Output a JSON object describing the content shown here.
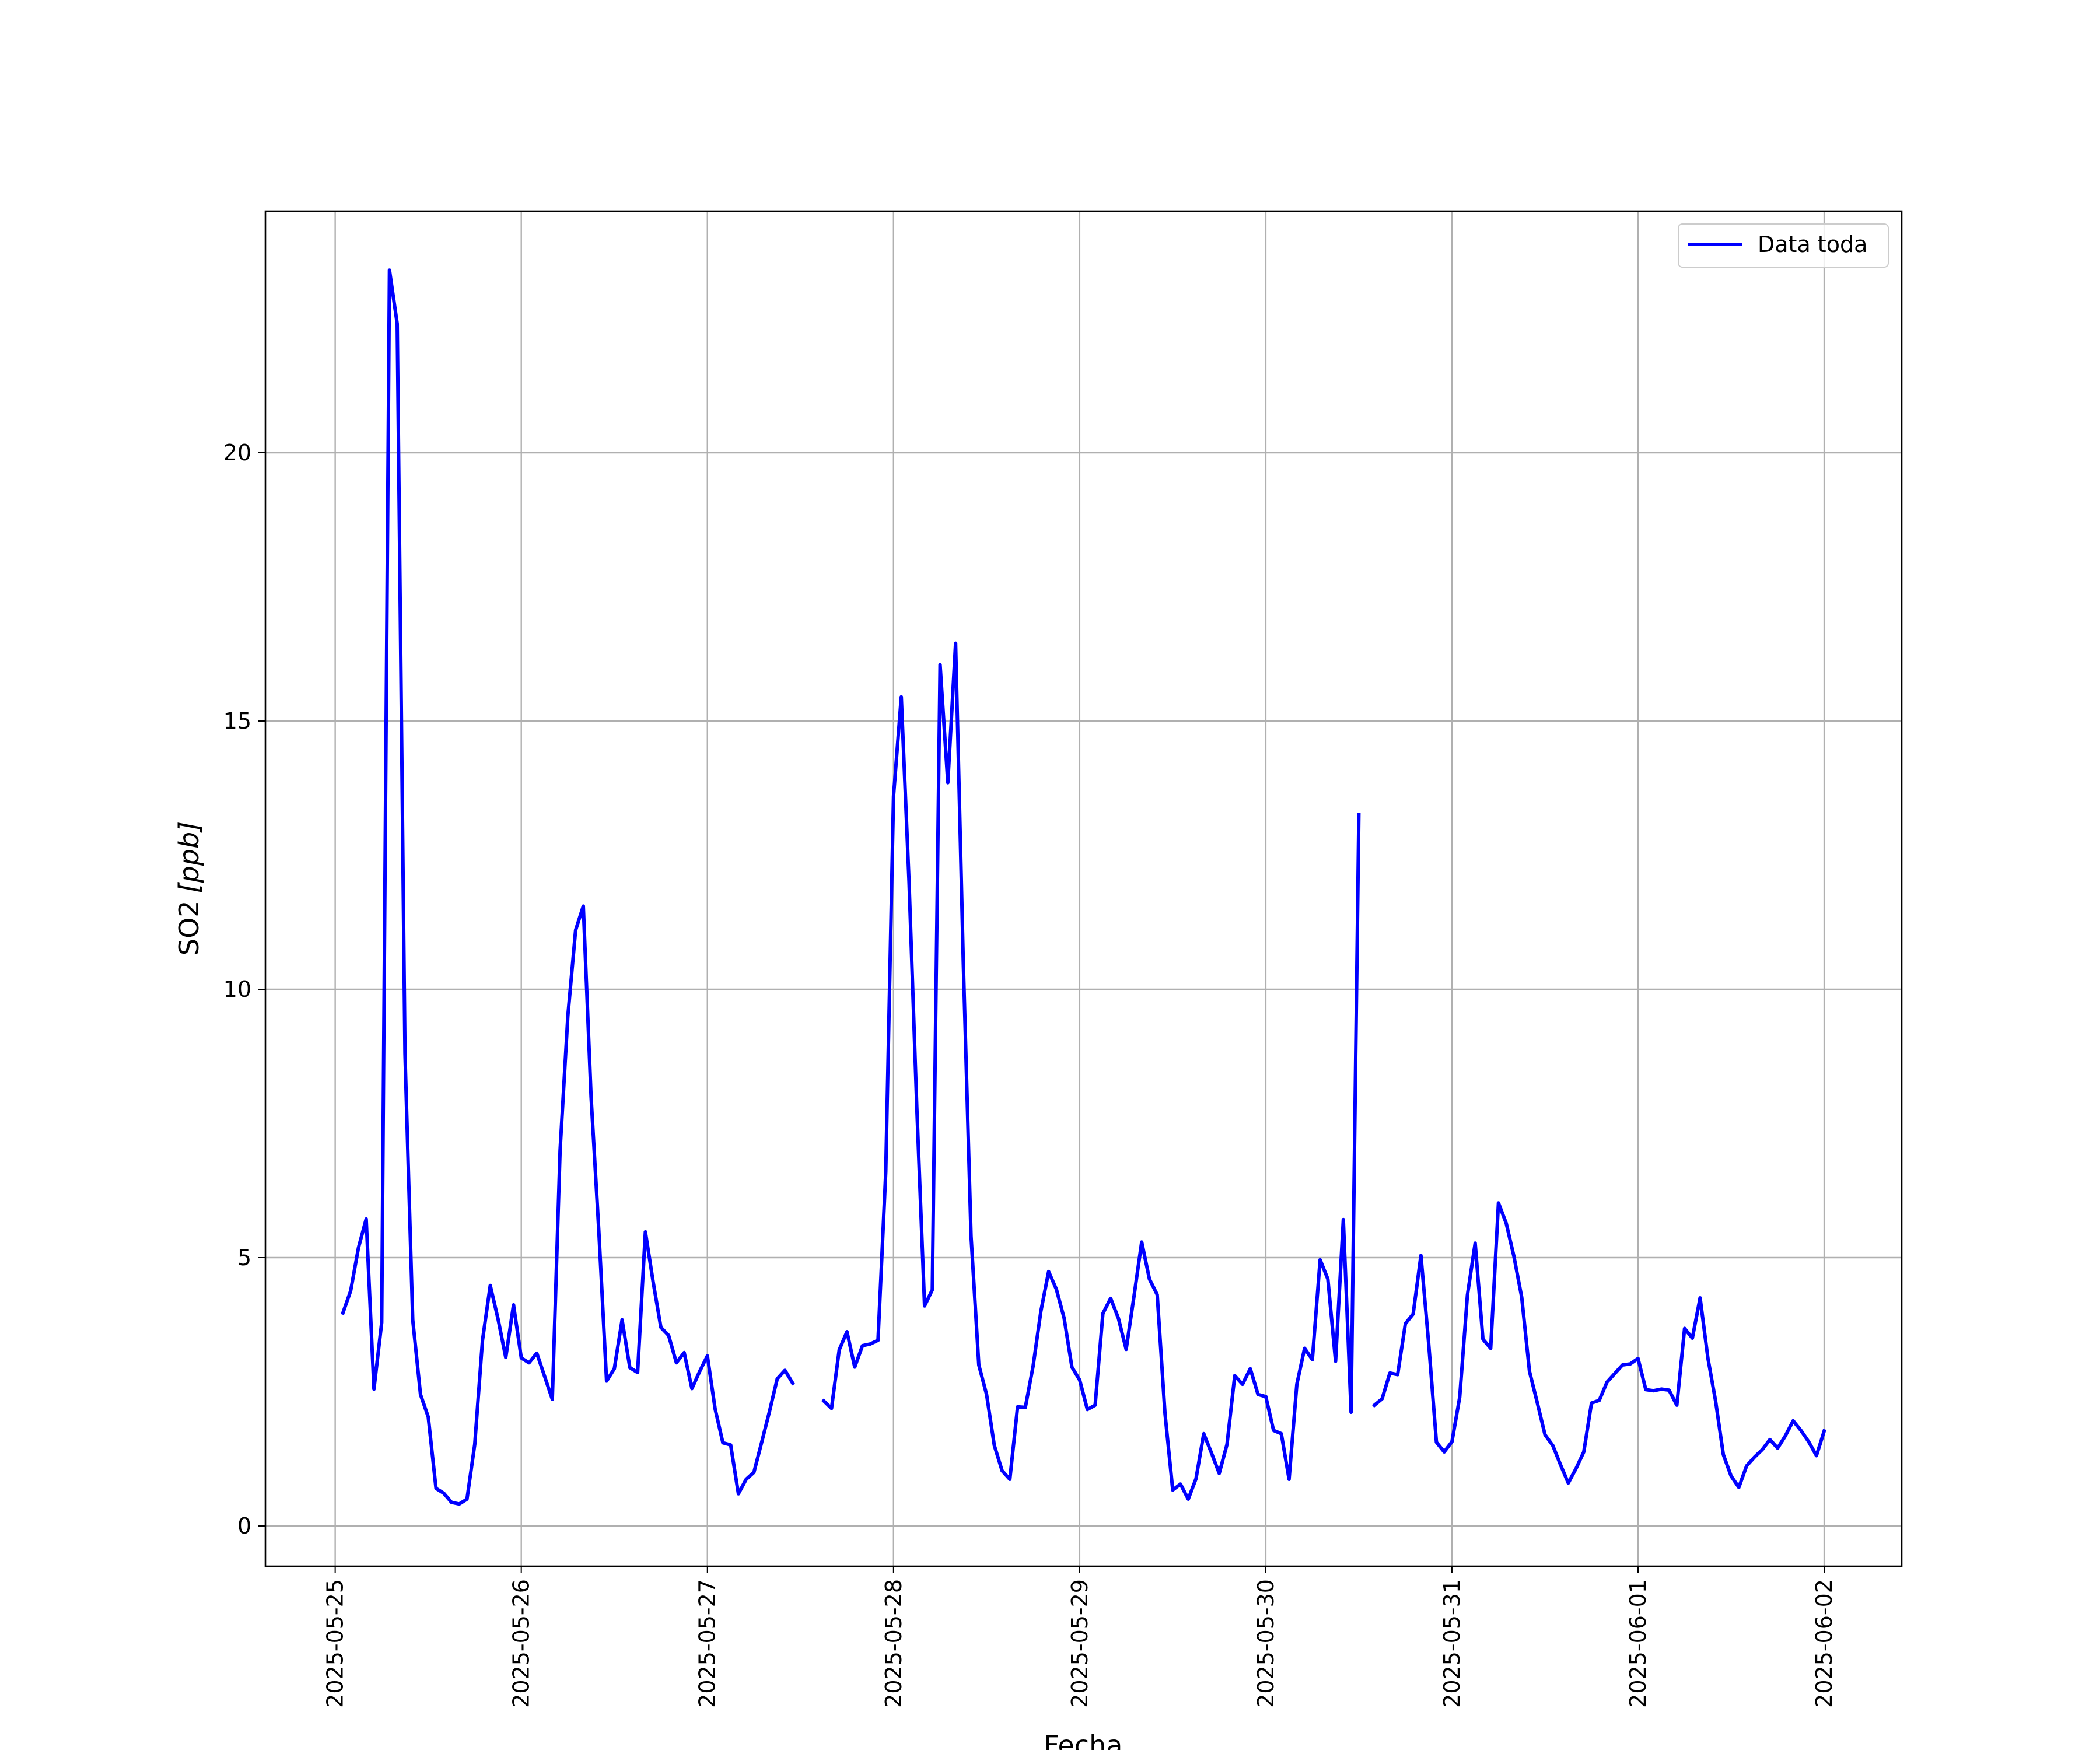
{
  "chart_data": {
    "type": "line",
    "title": "",
    "xlabel": "Fecha",
    "ylabel": "SO2",
    "ylabel_unit": "[ppb]",
    "x_tick_labels": [
      "2025-05-25",
      "2025-05-26",
      "2025-05-27",
      "2025-05-28",
      "2025-05-29",
      "2025-05-30",
      "2025-05-31",
      "2025-06-01",
      "2025-06-02"
    ],
    "y_ticks": [
      0,
      5,
      10,
      15,
      20
    ],
    "ylim": [
      -0.75,
      24.5
    ],
    "xlim": [
      "2025-05-24 15:00",
      "2025-06-02 10:00"
    ],
    "grid": true,
    "legend_position": "top-right",
    "series": [
      {
        "name": "Data toda",
        "color": "#0000ff",
        "points": [
          [
            "2025-05-25 01:00",
            3.97
          ],
          [
            "2025-05-25 02:00",
            4.38
          ],
          [
            "2025-05-25 03:00",
            5.18
          ],
          [
            "2025-05-25 04:00",
            5.72
          ],
          [
            "2025-05-25 05:00",
            2.55
          ],
          [
            "2025-05-25 06:00",
            3.79
          ],
          [
            "2025-05-25 07:00",
            23.4
          ],
          [
            "2025-05-25 08:00",
            22.4
          ],
          [
            "2025-05-25 09:00",
            8.8
          ],
          [
            "2025-05-25 10:00",
            3.84
          ],
          [
            "2025-05-25 11:00",
            2.45
          ],
          [
            "2025-05-25 12:00",
            2.03
          ],
          [
            "2025-05-25 13:00",
            0.7
          ],
          [
            "2025-05-25 14:00",
            0.61
          ],
          [
            "2025-05-25 15:00",
            0.44
          ],
          [
            "2025-05-25 16:00",
            0.41
          ],
          [
            "2025-05-25 17:00",
            0.5
          ],
          [
            "2025-05-25 18:00",
            1.52
          ],
          [
            "2025-05-25 19:00",
            3.46
          ],
          [
            "2025-05-25 20:00",
            4.48
          ],
          [
            "2025-05-25 21:00",
            3.86
          ],
          [
            "2025-05-25 22:00",
            3.14
          ],
          [
            "2025-05-25 23:00",
            4.12
          ],
          [
            "2025-05-26 00:00",
            3.13
          ],
          [
            "2025-05-26 01:00",
            3.04
          ],
          [
            "2025-05-26 02:00",
            3.22
          ],
          [
            "2025-05-26 03:00",
            2.79
          ],
          [
            "2025-05-26 04:00",
            2.36
          ],
          [
            "2025-05-26 05:00",
            7.0
          ],
          [
            "2025-05-26 06:00",
            9.5
          ],
          [
            "2025-05-26 07:00",
            11.1
          ],
          [
            "2025-05-26 08:00",
            11.55
          ],
          [
            "2025-05-26 09:00",
            8.0
          ],
          [
            "2025-05-26 10:00",
            5.5
          ],
          [
            "2025-05-26 11:00",
            2.7
          ],
          [
            "2025-05-26 12:00",
            2.93
          ],
          [
            "2025-05-26 13:00",
            3.84
          ],
          [
            "2025-05-26 14:00",
            2.95
          ],
          [
            "2025-05-26 15:00",
            2.86
          ],
          [
            "2025-05-26 16:00",
            5.48
          ],
          [
            "2025-05-26 17:00",
            4.55
          ],
          [
            "2025-05-26 18:00",
            3.7
          ],
          [
            "2025-05-26 19:00",
            3.55
          ],
          [
            "2025-05-26 20:00",
            3.04
          ],
          [
            "2025-05-26 21:00",
            3.23
          ],
          [
            "2025-05-26 22:00",
            2.56
          ],
          [
            "2025-05-26 23:00",
            2.88
          ],
          [
            "2025-05-27 00:00",
            3.17
          ],
          [
            "2025-05-27 01:00",
            2.18
          ],
          [
            "2025-05-27 02:00",
            1.55
          ],
          [
            "2025-05-27 03:00",
            1.51
          ],
          [
            "2025-05-27 04:00",
            0.6
          ],
          [
            "2025-05-27 05:00",
            0.87
          ],
          [
            "2025-05-27 06:00",
            1.0
          ],
          [
            "2025-05-27 07:00",
            1.56
          ],
          [
            "2025-05-27 08:00",
            2.13
          ],
          [
            "2025-05-27 09:00",
            2.74
          ],
          [
            "2025-05-27 10:00",
            2.9
          ],
          [
            "2025-05-27 11:00",
            2.66
          ],
          null,
          [
            "2025-05-27 15:00",
            2.33
          ],
          [
            "2025-05-27 16:00",
            2.19
          ],
          [
            "2025-05-27 17:00",
            3.28
          ],
          [
            "2025-05-27 18:00",
            3.62
          ],
          [
            "2025-05-27 19:00",
            2.96
          ],
          [
            "2025-05-27 20:00",
            3.36
          ],
          [
            "2025-05-27 21:00",
            3.39
          ],
          [
            "2025-05-27 22:00",
            3.46
          ],
          [
            "2025-05-27 23:00",
            6.6
          ],
          [
            "2025-05-28 00:00",
            13.6
          ],
          [
            "2025-05-28 01:00",
            15.45
          ],
          [
            "2025-05-28 02:00",
            12.0
          ],
          [
            "2025-05-28 03:00",
            7.8
          ],
          [
            "2025-05-28 04:00",
            4.1
          ],
          [
            "2025-05-28 05:00",
            4.4
          ],
          [
            "2025-05-28 06:00",
            16.05
          ],
          [
            "2025-05-28 07:00",
            13.85
          ],
          [
            "2025-05-28 08:00",
            16.45
          ],
          [
            "2025-05-28 09:00",
            10.5
          ],
          [
            "2025-05-28 10:00",
            5.4
          ],
          [
            "2025-05-28 11:00",
            3.0
          ],
          [
            "2025-05-28 12:00",
            2.45
          ],
          [
            "2025-05-28 13:00",
            1.5
          ],
          [
            "2025-05-28 14:00",
            1.03
          ],
          [
            "2025-05-28 15:00",
            0.87
          ],
          [
            "2025-05-28 16:00",
            2.22
          ],
          [
            "2025-05-28 17:00",
            2.21
          ],
          [
            "2025-05-28 18:00",
            2.98
          ],
          [
            "2025-05-28 19:00",
            4.0
          ],
          [
            "2025-05-28 20:00",
            4.74
          ],
          [
            "2025-05-28 21:00",
            4.41
          ],
          [
            "2025-05-28 22:00",
            3.87
          ],
          [
            "2025-05-28 23:00",
            2.96
          ],
          [
            "2025-05-29 00:00",
            2.72
          ],
          [
            "2025-05-29 01:00",
            2.17
          ],
          [
            "2025-05-29 02:00",
            2.25
          ],
          [
            "2025-05-29 03:00",
            3.96
          ],
          [
            "2025-05-29 04:00",
            4.24
          ],
          [
            "2025-05-29 05:00",
            3.87
          ],
          [
            "2025-05-29 06:00",
            3.29
          ],
          [
            "2025-05-29 07:00",
            4.27
          ],
          [
            "2025-05-29 08:00",
            5.29
          ],
          [
            "2025-05-29 09:00",
            4.6
          ],
          [
            "2025-05-29 10:00",
            4.31
          ],
          [
            "2025-05-29 11:00",
            2.1
          ],
          [
            "2025-05-29 12:00",
            0.67
          ],
          [
            "2025-05-29 13:00",
            0.78
          ],
          [
            "2025-05-29 14:00",
            0.5
          ],
          [
            "2025-05-29 15:00",
            0.88
          ],
          [
            "2025-05-29 16:00",
            1.72
          ],
          [
            "2025-05-29 17:00",
            1.36
          ],
          [
            "2025-05-29 18:00",
            0.98
          ],
          [
            "2025-05-29 19:00",
            1.52
          ],
          [
            "2025-05-29 20:00",
            2.8
          ],
          [
            "2025-05-29 21:00",
            2.64
          ],
          [
            "2025-05-29 22:00",
            2.93
          ],
          [
            "2025-05-29 23:00",
            2.45
          ],
          [
            "2025-05-30 00:00",
            2.41
          ],
          [
            "2025-05-30 01:00",
            1.78
          ],
          [
            "2025-05-30 02:00",
            1.72
          ],
          [
            "2025-05-30 03:00",
            0.87
          ],
          [
            "2025-05-30 04:00",
            2.64
          ],
          [
            "2025-05-30 05:00",
            3.31
          ],
          [
            "2025-05-30 06:00",
            3.1
          ],
          [
            "2025-05-30 07:00",
            4.96
          ],
          [
            "2025-05-30 08:00",
            4.6
          ],
          [
            "2025-05-30 09:00",
            3.07
          ],
          [
            "2025-05-30 10:00",
            5.71
          ],
          [
            "2025-05-30 11:00",
            2.12
          ],
          [
            "2025-05-30 12:00",
            13.25
          ],
          null,
          [
            "2025-05-30 14:00",
            2.25
          ],
          [
            "2025-05-30 15:00",
            2.37
          ],
          [
            "2025-05-30 16:00",
            2.85
          ],
          [
            "2025-05-30 17:00",
            2.82
          ],
          [
            "2025-05-30 18:00",
            3.77
          ],
          [
            "2025-05-30 19:00",
            3.95
          ],
          [
            "2025-05-30 20:00",
            5.04
          ],
          [
            "2025-05-30 21:00",
            3.4
          ],
          [
            "2025-05-30 22:00",
            1.56
          ],
          [
            "2025-05-30 23:00",
            1.38
          ],
          [
            "2025-05-31 00:00",
            1.57
          ],
          [
            "2025-05-31 01:00",
            2.4
          ],
          [
            "2025-05-31 02:00",
            4.3
          ],
          [
            "2025-05-31 03:00",
            5.27
          ],
          [
            "2025-05-31 04:00",
            3.48
          ],
          [
            "2025-05-31 05:00",
            3.31
          ],
          [
            "2025-05-31 06:00",
            6.02
          ],
          [
            "2025-05-31 07:00",
            5.64
          ],
          [
            "2025-05-31 08:00",
            5.02
          ],
          [
            "2025-05-31 09:00",
            4.26
          ],
          [
            "2025-05-31 10:00",
            2.88
          ],
          [
            "2025-05-31 11:00",
            2.3
          ],
          [
            "2025-05-31 12:00",
            1.7
          ],
          [
            "2025-05-31 13:00",
            1.5
          ],
          [
            "2025-05-31 14:00",
            1.14
          ],
          [
            "2025-05-31 15:00",
            0.8
          ],
          [
            "2025-05-31 16:00",
            1.07
          ],
          [
            "2025-05-31 17:00",
            1.38
          ],
          [
            "2025-05-31 18:00",
            2.29
          ],
          [
            "2025-05-31 19:00",
            2.34
          ],
          [
            "2025-05-31 20:00",
            2.68
          ],
          [
            "2025-05-31 21:00",
            2.84
          ],
          [
            "2025-05-31 22:00",
            3.0
          ],
          [
            "2025-05-31 23:00",
            3.02
          ],
          [
            "2025-06-01 00:00",
            3.12
          ],
          [
            "2025-06-01 01:00",
            2.54
          ],
          [
            "2025-06-01 02:00",
            2.52
          ],
          [
            "2025-06-01 03:00",
            2.55
          ],
          [
            "2025-06-01 04:00",
            2.53
          ],
          [
            "2025-06-01 05:00",
            2.25
          ],
          [
            "2025-06-01 06:00",
            3.68
          ],
          [
            "2025-06-01 07:00",
            3.5
          ],
          [
            "2025-06-01 08:00",
            4.25
          ],
          [
            "2025-06-01 09:00",
            3.13
          ],
          [
            "2025-06-01 10:00",
            2.33
          ],
          [
            "2025-06-01 11:00",
            1.33
          ],
          [
            "2025-06-01 12:00",
            0.93
          ],
          [
            "2025-06-01 13:00",
            0.72
          ],
          [
            "2025-06-01 14:00",
            1.12
          ],
          [
            "2025-06-01 15:00",
            1.28
          ],
          [
            "2025-06-01 16:00",
            1.42
          ],
          [
            "2025-06-01 17:00",
            1.61
          ],
          [
            "2025-06-01 18:00",
            1.45
          ],
          [
            "2025-06-01 19:00",
            1.68
          ],
          [
            "2025-06-01 20:00",
            1.96
          ],
          [
            "2025-06-01 21:00",
            1.78
          ],
          [
            "2025-06-01 22:00",
            1.57
          ],
          [
            "2025-06-01 23:00",
            1.31
          ],
          [
            "2025-06-02 00:00",
            1.77
          ]
        ]
      }
    ]
  }
}
